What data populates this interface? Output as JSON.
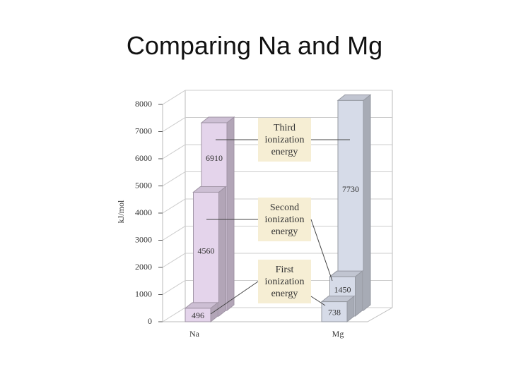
{
  "chart_data": {
    "type": "bar3d",
    "title": "Comparing Na and Mg",
    "y_label": "kJ/mol",
    "categories": [
      "Na",
      "Mg"
    ],
    "colors": [
      "#e4d4eb",
      "#d6dbe8"
    ],
    "series": [
      {
        "name": "First ionization energy",
        "values": [
          496,
          738
        ]
      },
      {
        "name": "Second ionization energy",
        "values": [
          4560,
          1450
        ]
      },
      {
        "name": "Third ionization energy",
        "values": [
          6910,
          7730
        ]
      }
    ],
    "ylim": [
      0,
      8000
    ],
    "yticks": [
      0,
      1000,
      2000,
      3000,
      4000,
      5000,
      6000,
      7000,
      8000
    ],
    "grid": true
  }
}
